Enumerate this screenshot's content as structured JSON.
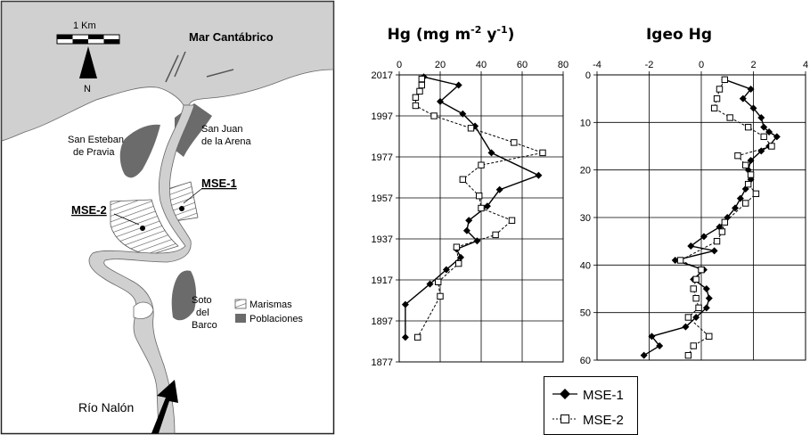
{
  "map": {
    "scale_label": "1 Km",
    "north_label": "N",
    "sea_label": "Mar Cantábrico",
    "town_1": [
      "San Esteban",
      "de Pravia"
    ],
    "town_2": [
      "San Juan",
      "de la Arena"
    ],
    "town_3": [
      "Soto",
      "del",
      "Barco"
    ],
    "site_1": "MSE-1",
    "site_2": "MSE-2",
    "river_label": "Río Nalón",
    "legend_marsh": "Marismas",
    "legend_towns": "Poblaciones"
  },
  "legend": {
    "series_1": "MSE-1",
    "series_2": "MSE-2"
  },
  "chart_data": [
    {
      "type": "line",
      "title": "Hg (mg m-2 y-1)",
      "title_parts": {
        "base": "Hg (mg m",
        "sup1": "-2",
        "mid": " y",
        "sup2": "-1",
        "end": ")"
      },
      "x_axis": {
        "range": [
          0,
          80
        ],
        "ticks": [
          "0",
          "20",
          "40",
          "60",
          "80"
        ],
        "position": "top"
      },
      "y_axis": {
        "range": [
          2017,
          1877
        ],
        "ticks": [
          "2017",
          "1997",
          "1977",
          "1957",
          "1937",
          "1917",
          "1897",
          "1877"
        ],
        "reversed": true
      },
      "grid": true,
      "series": [
        {
          "name": "MSE-1",
          "color": "#000000",
          "marker": "diamond",
          "line": "solid",
          "points": [
            [
              12,
              2016
            ],
            [
              29,
              2012
            ],
            [
              20,
              2004
            ],
            [
              31,
              1998
            ],
            [
              37,
              1992
            ],
            [
              45,
              1979
            ],
            [
              68,
              1968
            ],
            [
              49,
              1961
            ],
            [
              43,
              1953
            ],
            [
              34,
              1946
            ],
            [
              33,
              1941
            ],
            [
              38,
              1936
            ],
            [
              28,
              1932
            ],
            [
              30,
              1928
            ],
            [
              23,
              1922
            ],
            [
              15,
              1915
            ],
            [
              3,
              1905
            ],
            [
              3,
              1889
            ]
          ]
        },
        {
          "name": "MSE-2",
          "color": "#000000",
          "marker": "square",
          "line": "dashed",
          "points": [
            [
              11,
              2015
            ],
            [
              11,
              2012
            ],
            [
              10,
              2009
            ],
            [
              8,
              2006
            ],
            [
              8,
              2002
            ],
            [
              17,
              1997
            ],
            [
              35,
              1991
            ],
            [
              56,
              1984
            ],
            [
              70,
              1979
            ],
            [
              40,
              1973
            ],
            [
              31,
              1966
            ],
            [
              39,
              1958
            ],
            [
              40,
              1952
            ],
            [
              55,
              1946
            ],
            [
              47,
              1939
            ],
            [
              28,
              1933
            ],
            [
              29,
              1925
            ],
            [
              19,
              1916
            ],
            [
              20,
              1909
            ],
            [
              9,
              1889
            ]
          ]
        }
      ]
    },
    {
      "type": "line",
      "title": "Igeo Hg",
      "x_axis": {
        "range": [
          -4,
          4
        ],
        "ticks": [
          "-4",
          "-2",
          "0",
          "2",
          "4"
        ],
        "position": "top"
      },
      "y_axis": {
        "range": [
          0,
          60
        ],
        "ticks": [
          "0",
          "10",
          "20",
          "30",
          "40",
          "50",
          "60"
        ],
        "reversed": true
      },
      "grid": true,
      "series": [
        {
          "name": "MSE-1",
          "color": "#000000",
          "marker": "diamond",
          "line": "solid",
          "points": [
            [
              0.9,
              1
            ],
            [
              1.9,
              3
            ],
            [
              1.6,
              5
            ],
            [
              2.0,
              7
            ],
            [
              2.3,
              9
            ],
            [
              2.4,
              11
            ],
            [
              2.6,
              12
            ],
            [
              2.9,
              13
            ],
            [
              2.6,
              15
            ],
            [
              2.3,
              16
            ],
            [
              1.9,
              18
            ],
            [
              1.8,
              20
            ],
            [
              1.9,
              22
            ],
            [
              1.7,
              24
            ],
            [
              1.5,
              26
            ],
            [
              1.3,
              28
            ],
            [
              1.0,
              30
            ],
            [
              0.7,
              32
            ],
            [
              0.1,
              34
            ],
            [
              -0.4,
              36
            ],
            [
              0.5,
              37
            ],
            [
              -1.0,
              39
            ],
            [
              0.1,
              41
            ],
            [
              -0.3,
              43
            ],
            [
              0.2,
              45
            ],
            [
              0.3,
              47
            ],
            [
              0.2,
              49
            ],
            [
              -0.2,
              51
            ],
            [
              -0.6,
              53
            ],
            [
              -1.9,
              55
            ],
            [
              -1.6,
              57
            ],
            [
              -2.2,
              59
            ]
          ]
        },
        {
          "name": "MSE-2",
          "color": "#000000",
          "marker": "square",
          "line": "dashed",
          "points": [
            [
              0.9,
              1
            ],
            [
              0.7,
              3
            ],
            [
              0.6,
              5
            ],
            [
              0.5,
              7
            ],
            [
              1.1,
              9
            ],
            [
              1.8,
              11
            ],
            [
              2.4,
              13
            ],
            [
              2.7,
              15
            ],
            [
              1.4,
              17
            ],
            [
              1.7,
              19
            ],
            [
              1.9,
              21
            ],
            [
              1.8,
              23
            ],
            [
              2.1,
              25
            ],
            [
              1.7,
              27
            ],
            [
              0.9,
              31
            ],
            [
              0.8,
              33
            ],
            [
              0.6,
              35
            ],
            [
              -0.8,
              39
            ],
            [
              0.0,
              41
            ],
            [
              -0.2,
              43
            ],
            [
              -0.3,
              45
            ],
            [
              -0.2,
              47
            ],
            [
              -0.1,
              49
            ],
            [
              -0.5,
              51
            ],
            [
              0.3,
              55
            ],
            [
              -0.3,
              57
            ],
            [
              -0.5,
              59
            ]
          ]
        }
      ]
    }
  ]
}
